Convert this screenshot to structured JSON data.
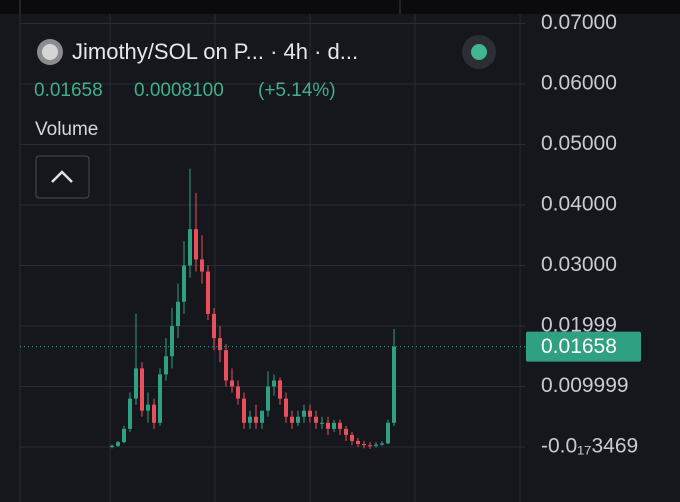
{
  "header": {
    "pair": "Jimothy/SOL on P... · 4h · d...",
    "change": "0.0008100",
    "change_pct": "(+5.14%)",
    "indicator": "Volume"
  },
  "chart_data": {
    "type": "candlestick",
    "open": [
      0,
      0.0002,
      0.0008,
      0.003,
      0.008,
      0.013,
      0.006,
      0.007,
      0.004,
      0.012,
      0.015,
      0.02,
      0.024,
      0.03,
      0.036,
      0.031,
      0.029,
      0.022,
      0.018,
      0.016,
      0.011,
      0.01,
      0.008,
      0.004,
      0.005,
      0.004,
      0.006,
      0.01,
      0.011,
      0.008,
      0.005,
      0.004,
      0.005,
      0.006,
      0.005,
      0.004,
      0.004,
      0.003,
      0.004,
      0.003,
      0.002,
      0.001,
      0.0005,
      0.0003,
      0.0002,
      0.0004,
      0.0006,
      0.004
    ],
    "high": [
      0.0004,
      0.001,
      0.0035,
      0.009,
      0.022,
      0.014,
      0.009,
      0.008,
      0.013,
      0.018,
      0.023,
      0.027,
      0.034,
      0.046,
      0.042,
      0.035,
      0.03,
      0.023,
      0.02,
      0.017,
      0.013,
      0.011,
      0.009,
      0.006,
      0.007,
      0.006,
      0.0125,
      0.012,
      0.0115,
      0.009,
      0.006,
      0.006,
      0.007,
      0.007,
      0.006,
      0.005,
      0.005,
      0.0045,
      0.0045,
      0.0035,
      0.0025,
      0.0015,
      0.001,
      0.0008,
      0.0008,
      0.001,
      0.0045,
      0.0195
    ],
    "low": [
      -0.0002,
      0.0,
      0.0006,
      0.0025,
      0.007,
      0.005,
      0.004,
      0.003,
      0.0035,
      0.011,
      0.013,
      0.018,
      0.022,
      0.028,
      0.029,
      0.027,
      0.021,
      0.016,
      0.014,
      0.01,
      0.009,
      0.007,
      0.003,
      0.003,
      0.003,
      0.003,
      0.005,
      0.0085,
      0.007,
      0.004,
      0.003,
      0.0035,
      0.004,
      0.004,
      0.003,
      0.003,
      0.002,
      0.0025,
      0.002,
      0.001,
      0.0003,
      0.0,
      -0.0002,
      -0.0003,
      -0.0001,
      0.0002,
      0.0005,
      0.0035
    ],
    "close": [
      0.0002,
      0.0008,
      0.003,
      0.008,
      0.013,
      0.006,
      0.007,
      0.004,
      0.012,
      0.015,
      0.02,
      0.024,
      0.03,
      0.036,
      0.031,
      0.029,
      0.022,
      0.018,
      0.016,
      0.011,
      0.01,
      0.008,
      0.004,
      0.005,
      0.004,
      0.006,
      0.01,
      0.011,
      0.008,
      0.005,
      0.004,
      0.005,
      0.006,
      0.005,
      0.004,
      0.004,
      0.003,
      0.004,
      0.003,
      0.002,
      0.001,
      0.0005,
      0.0003,
      0.0002,
      0.0004,
      0.0006,
      0.004,
      0.01658
    ],
    "up_color": "#2fa082",
    "down_color": "#e8505b",
    "last_price": 0.01658,
    "ylim": [
      -0.00909,
      0.07388
    ],
    "yticks": [
      {
        "value": 0.07,
        "label": "0.07000"
      },
      {
        "value": 0.06,
        "label": "0.06000"
      },
      {
        "value": 0.05,
        "label": "0.05000"
      },
      {
        "value": 0.04,
        "label": "0.04000"
      },
      {
        "value": 0.03,
        "label": "0.03000"
      },
      0.01999,
      0.009999,
      {
        "value": -3.469e-18,
        "label": "-0.0₁₇3469"
      }
    ],
    "grid": true
  }
}
